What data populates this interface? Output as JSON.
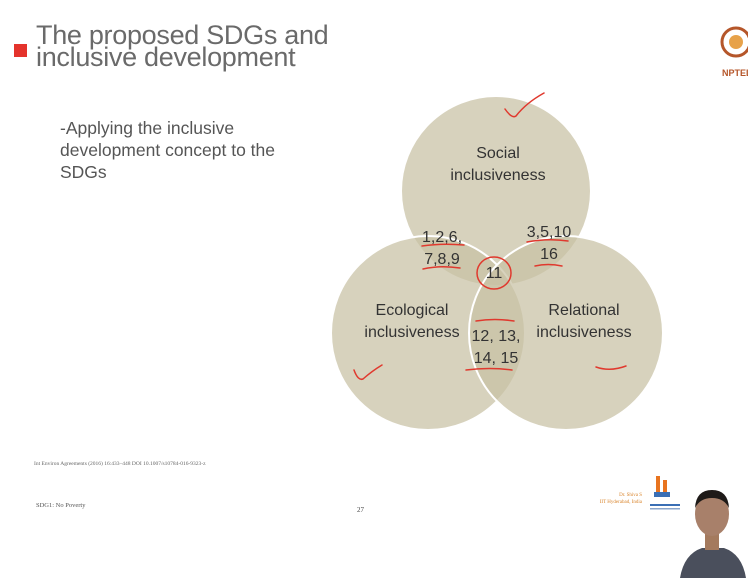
{
  "slide": {
    "title_lines": [
      "The proposed SDGs and",
      "inclusive development"
    ],
    "bullet": "-Applying the inclusive development concept to the SDGs",
    "reference": "Int Environ Agreements (2016) 16:433–448 DOI 10.1007/s10784-016-9323-z",
    "footer_left": "SDG1: No Poverty",
    "page_number": "27",
    "author_lines": [
      "Dr. Shiva S",
      "IIT Hyderabad, India"
    ],
    "logo_caption": "NPTEL"
  },
  "venn": {
    "sets": [
      {
        "name": "Social",
        "label_lines": [
          "Social",
          "inclusiveness"
        ]
      },
      {
        "name": "Ecological",
        "label_lines": [
          "Ecological",
          "inclusiveness"
        ]
      },
      {
        "name": "Relational",
        "label_lines": [
          "Relational",
          "inclusiveness"
        ]
      }
    ],
    "intersections": {
      "social_ecological": [
        "1,2,6,",
        "7,8,9"
      ],
      "social_relational": [
        "3,5,10",
        "16"
      ],
      "ecological_relational": [
        "12, 13,",
        "14, 15"
      ],
      "all_three": "11"
    },
    "colors": {
      "circle_fill": "#c8c0a4",
      "circle_stroke": "#ffffff",
      "annotation": "#e0392e",
      "text": "#333333"
    }
  }
}
